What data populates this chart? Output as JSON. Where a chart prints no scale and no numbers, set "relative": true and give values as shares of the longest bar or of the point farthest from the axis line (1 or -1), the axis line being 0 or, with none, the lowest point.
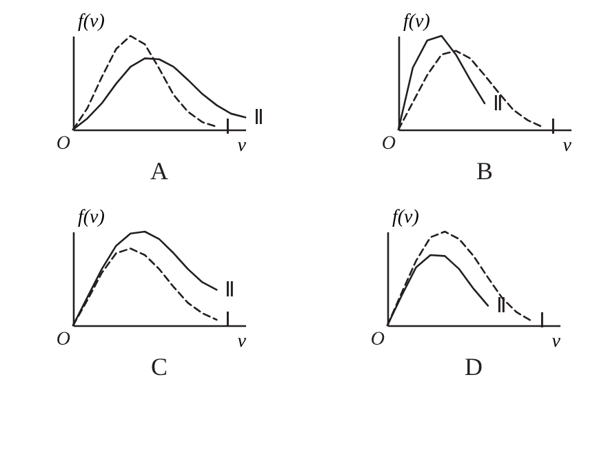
{
  "chart_data": [
    {
      "type": "line",
      "title": "A",
      "xlabel": "v",
      "ylabel": "f(v)",
      "annotations": [
        "O"
      ],
      "relative": true,
      "categories": [
        null,
        null,
        null,
        null,
        null,
        null,
        null,
        null,
        null,
        null,
        null,
        null,
        null
      ],
      "series": [
        {
          "name": "Ⅰ",
          "color": "#231f20",
          "line_style": "dashed",
          "values": [
            0,
            0.23,
            0.56,
            0.86,
            1,
            0.91,
            0.65,
            0.37,
            0.19,
            0.08,
            0.03,
            null,
            null
          ]
        },
        {
          "name": "Ⅱ",
          "color": "#231f20",
          "line_style": "solid",
          "values": [
            0,
            0.12,
            0.28,
            0.49,
            0.67,
            0.76,
            0.75,
            0.67,
            0.53,
            0.38,
            0.26,
            0.17,
            0.13
          ]
        }
      ]
    },
    {
      "type": "line",
      "title": "B",
      "xlabel": "v",
      "ylabel": "f(v)",
      "annotations": [
        "O"
      ],
      "relative": true,
      "categories": [
        null,
        null,
        null,
        null,
        null,
        null,
        null,
        null,
        null,
        null,
        null,
        null,
        null
      ],
      "series": [
        {
          "name": "Ⅱ",
          "color": "#231f20",
          "line_style": "solid",
          "values": [
            0,
            0.66,
            0.95,
            1,
            0.8,
            0.53,
            0.28,
            null,
            null,
            null,
            null,
            null,
            null
          ]
        },
        {
          "name": "Ⅰ",
          "color": "#231f20",
          "line_style": "dashed",
          "values": [
            0,
            0.29,
            0.58,
            0.8,
            0.84,
            0.76,
            0.58,
            0.39,
            0.21,
            0.1,
            0.03,
            null,
            null
          ]
        }
      ]
    },
    {
      "type": "line",
      "title": "C",
      "xlabel": "v",
      "ylabel": "f(v)",
      "annotations": [
        "O"
      ],
      "relative": true,
      "categories": [
        null,
        null,
        null,
        null,
        null,
        null,
        null,
        null,
        null,
        null,
        null,
        null,
        null
      ],
      "series": [
        {
          "name": "Ⅱ",
          "color": "#231f20",
          "line_style": "solid",
          "values": [
            0,
            0.3,
            0.6,
            0.85,
            0.98,
            1,
            0.92,
            0.77,
            0.6,
            0.46,
            0.38,
            null,
            null
          ]
        },
        {
          "name": "Ⅰ",
          "color": "#231f20",
          "line_style": "dashed",
          "values": [
            0,
            0.27,
            0.56,
            0.77,
            0.82,
            0.75,
            0.6,
            0.41,
            0.24,
            0.13,
            0.06,
            null,
            null
          ]
        }
      ]
    },
    {
      "type": "line",
      "title": "D",
      "xlabel": "v",
      "ylabel": "f(v)",
      "annotations": [
        "O"
      ],
      "relative": true,
      "categories": [
        null,
        null,
        null,
        null,
        null,
        null,
        null,
        null,
        null,
        null,
        null,
        null,
        null
      ],
      "series": [
        {
          "name": "Ⅰ",
          "color": "#231f20",
          "line_style": "dashed",
          "values": [
            0,
            0.35,
            0.69,
            0.94,
            1,
            0.92,
            0.74,
            0.51,
            0.29,
            0.14,
            0.05,
            null,
            null
          ]
        },
        {
          "name": "Ⅱ",
          "color": "#231f20",
          "line_style": "solid",
          "values": [
            0,
            0.32,
            0.62,
            0.75,
            0.74,
            0.6,
            0.39,
            0.21,
            null,
            null,
            null,
            null,
            null
          ]
        }
      ]
    }
  ]
}
